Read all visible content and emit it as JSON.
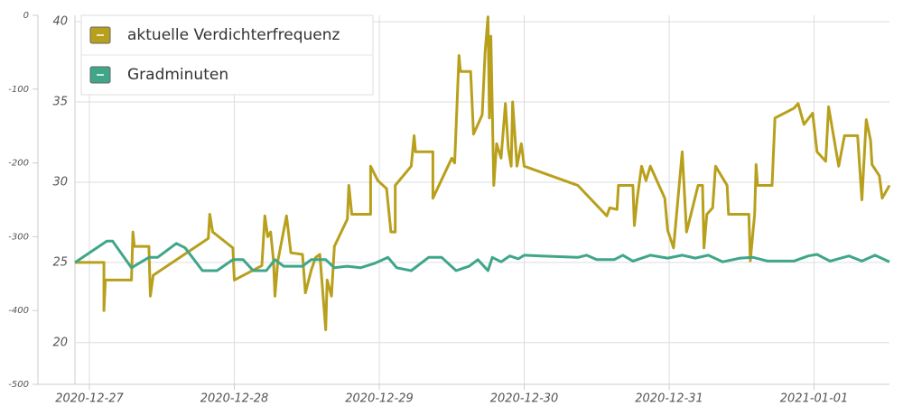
{
  "chart_data": {
    "type": "line",
    "xlim": [
      -0.1,
      5.52
    ],
    "xticks": [
      {
        "value": 0,
        "label": "2020-12-27"
      },
      {
        "value": 1,
        "label": "2020-12-28"
      },
      {
        "value": 2,
        "label": "2020-12-29"
      },
      {
        "value": 3,
        "label": "2020-12-30"
      },
      {
        "value": 4,
        "label": "2020-12-31"
      },
      {
        "value": 5,
        "label": "2021-01-01"
      }
    ],
    "ylim": [
      17.4,
      40.4
    ],
    "yticks": [
      20,
      25,
      30,
      35,
      40
    ],
    "y2lim": [
      -500,
      0
    ],
    "y2ticks": [
      0,
      -100,
      -200,
      -300,
      -400,
      -500
    ],
    "grid": true,
    "legend": "top-left",
    "series": [
      {
        "name": "aktuelle Verdichterfrequenz",
        "color": "#b8a01c",
        "x": [
          -0.1,
          0.1,
          0.1,
          0.11,
          0.29,
          0.3,
          0.31,
          0.41,
          0.42,
          0.44,
          0.82,
          0.83,
          0.85,
          0.99,
          1.0,
          1.19,
          1.21,
          1.23,
          1.25,
          1.27,
          1.28,
          1.3,
          1.36,
          1.39,
          1.47,
          1.49,
          1.53,
          1.56,
          1.59,
          1.63,
          1.64,
          1.67,
          1.69,
          1.78,
          1.79,
          1.81,
          1.94,
          1.94,
          1.99,
          2.05,
          2.08,
          2.11,
          2.11,
          2.22,
          2.24,
          2.25,
          2.37,
          2.37,
          2.5,
          2.52,
          2.55,
          2.56,
          2.63,
          2.65,
          2.71,
          2.73,
          2.75,
          2.76,
          2.77,
          2.79,
          2.81,
          2.84,
          2.87,
          2.89,
          2.91,
          2.92,
          2.95,
          2.98,
          3.0,
          3.37,
          3.57,
          3.59,
          3.64,
          3.65,
          3.75,
          3.76,
          3.78,
          3.81,
          3.84,
          3.87,
          3.93,
          3.97,
          3.99,
          4.03,
          4.09,
          4.12,
          4.2,
          4.23,
          4.24,
          4.26,
          4.3,
          4.32,
          4.4,
          4.41,
          4.55,
          4.56,
          4.59,
          4.6,
          4.61,
          4.71,
          4.73,
          4.86,
          4.89,
          4.93,
          4.99,
          5.02,
          5.08,
          5.1,
          5.17,
          5.21,
          5.3,
          5.33,
          5.36,
          5.39,
          5.4,
          5.45,
          5.47,
          5.52
        ],
        "values": [
          25.0,
          25.0,
          22.0,
          23.9,
          23.9,
          26.9,
          26.0,
          26.0,
          22.9,
          24.2,
          26.5,
          28.0,
          26.9,
          25.9,
          23.9,
          24.8,
          27.9,
          26.6,
          26.9,
          25.1,
          22.9,
          25.1,
          27.9,
          25.6,
          25.5,
          23.1,
          24.5,
          25.3,
          25.5,
          20.8,
          23.9,
          22.9,
          26.0,
          27.7,
          29.8,
          28.0,
          28.0,
          31.0,
          30.1,
          29.6,
          26.9,
          26.9,
          29.8,
          31.0,
          32.9,
          31.9,
          31.9,
          29.0,
          31.5,
          31.2,
          37.9,
          36.9,
          36.9,
          33.0,
          34.2,
          38.1,
          40.3,
          34.0,
          39.1,
          29.8,
          32.4,
          31.5,
          34.9,
          32.1,
          31.0,
          35.0,
          31.0,
          32.4,
          31.0,
          29.8,
          27.9,
          28.4,
          28.3,
          29.8,
          29.8,
          27.3,
          29.0,
          31.0,
          30.1,
          31.0,
          29.8,
          29.0,
          27.0,
          25.9,
          31.9,
          26.9,
          29.8,
          29.8,
          25.9,
          28.0,
          28.4,
          31.0,
          29.8,
          28.0,
          28.0,
          25.1,
          28.0,
          31.1,
          29.8,
          29.8,
          34.0,
          34.6,
          34.9,
          33.6,
          34.3,
          31.9,
          31.3,
          34.7,
          31.0,
          32.9,
          32.9,
          28.9,
          33.9,
          32.6,
          31.1,
          30.4,
          29.0,
          29.8
        ]
      },
      {
        "name": "Gradminuten",
        "color": "#3fa68a",
        "axis": "y2",
        "x": [
          -0.1,
          0.12,
          0.16,
          0.29,
          0.41,
          0.47,
          0.6,
          0.66,
          0.78,
          0.88,
          0.99,
          1.06,
          1.13,
          1.22,
          1.28,
          1.34,
          1.47,
          1.53,
          1.63,
          1.69,
          1.78,
          1.87,
          1.97,
          2.06,
          2.12,
          2.22,
          2.34,
          2.43,
          2.53,
          2.62,
          2.68,
          2.75,
          2.78,
          2.84,
          2.9,
          2.96,
          3.0,
          3.12,
          3.37,
          3.43,
          3.5,
          3.62,
          3.68,
          3.75,
          3.87,
          3.99,
          4.09,
          4.18,
          4.27,
          4.37,
          4.49,
          4.58,
          4.68,
          4.86,
          4.96,
          5.02,
          5.11,
          5.24,
          5.33,
          5.42,
          5.52
        ],
        "values": [
          -335,
          -306,
          -306,
          -342,
          -328,
          -328,
          -309,
          -315,
          -346,
          -346,
          -331,
          -331,
          -346,
          -346,
          -331,
          -340,
          -340,
          -331,
          -331,
          -342,
          -340,
          -342,
          -336,
          -328,
          -342,
          -346,
          -328,
          -328,
          -346,
          -340,
          -331,
          -346,
          -328,
          -334,
          -326,
          -330,
          -325,
          -326,
          -328,
          -325,
          -331,
          -331,
          -325,
          -333,
          -325,
          -329,
          -325,
          -329,
          -325,
          -334,
          -329,
          -328,
          -333,
          -333,
          -326,
          -324,
          -333,
          -326,
          -333,
          -325,
          -334
        ]
      }
    ]
  }
}
